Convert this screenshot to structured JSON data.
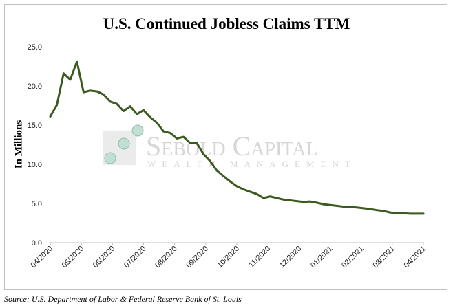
{
  "chart_data": {
    "type": "line",
    "title": "U.S. Continued Jobless Claims TTM",
    "ylabel": "In Millions",
    "xlabel": "",
    "ylim": [
      0,
      25
    ],
    "yticks": [
      "0.0",
      "5.0",
      "10.0",
      "15.0",
      "20.0",
      "25.0"
    ],
    "x_ticks": [
      "04/2020",
      "05/2020",
      "06/2020",
      "07/2020",
      "08/2020",
      "09/2020",
      "10/2020",
      "11/2020",
      "12/2020",
      "01/2021",
      "02/2021",
      "03/2021",
      "04/2021"
    ],
    "grid": false,
    "line_color": "#3a5a1f",
    "series": [
      {
        "values": [
          16.1,
          17.6,
          21.6,
          20.8,
          23.1,
          19.2,
          19.4,
          19.3,
          18.9,
          18.0,
          17.7,
          16.8,
          17.4,
          16.4,
          16.9,
          16.0,
          15.3,
          14.2,
          14.0,
          13.3,
          13.5,
          12.7,
          12.7,
          11.3,
          10.4,
          9.2,
          8.5,
          7.8,
          7.2,
          6.8,
          6.5,
          6.2,
          5.7,
          5.9,
          5.7,
          5.5,
          5.4,
          5.3,
          5.2,
          5.25,
          5.1,
          4.9,
          4.8,
          4.7,
          4.6,
          4.55,
          4.5,
          4.4,
          4.3,
          4.15,
          4.05,
          3.85,
          3.75,
          3.75,
          3.7,
          3.7,
          3.7
        ]
      }
    ]
  },
  "watermark": {
    "line1": "Sebold Capital",
    "line2": "Wealth Management"
  },
  "source": "Source: U.S. Department of Labor & Federal Reserve Bank of St. Louis"
}
